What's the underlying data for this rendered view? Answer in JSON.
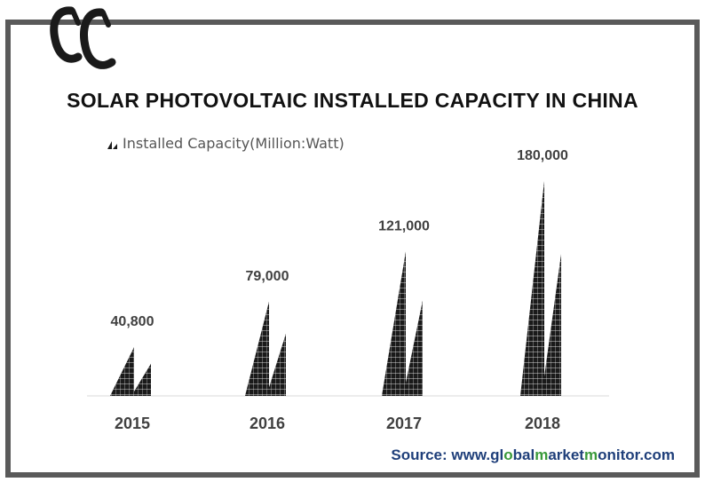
{
  "title": "SOLAR PHOTOVOLTAIC INSTALLED CAPACITY IN CHINA",
  "legend": {
    "label": "Installed Capacity(Million:Watt)"
  },
  "source": {
    "prefix": "Source: www.",
    "p1": "gl",
    "p2": "o",
    "p3": "bal",
    "p4": "m",
    "p5": "arket",
    "p6": "m",
    "p7": "onitor",
    "p8": ".com"
  },
  "colors": {
    "bar": "#1a1a1a",
    "frame": "#5a5a5a",
    "source": "#1f3f7a",
    "source_accent": "#3a9a3a"
  },
  "chart_data": {
    "type": "bar",
    "categories": [
      "2015",
      "2016",
      "2017",
      "2018"
    ],
    "series": [
      {
        "name": "Installed Capacity(Million:Watt)",
        "values": [
          40800,
          79000,
          121000,
          180000
        ]
      }
    ],
    "data_labels": [
      "40,800",
      "79,000",
      "121,000",
      "180,000"
    ],
    "title": "SOLAR PHOTOVOLTAIC INSTALLED CAPACITY IN CHINA",
    "xlabel": "",
    "ylabel": "",
    "ylim": [
      0,
      180000
    ],
    "grid": false,
    "legend_position": "top-left"
  }
}
